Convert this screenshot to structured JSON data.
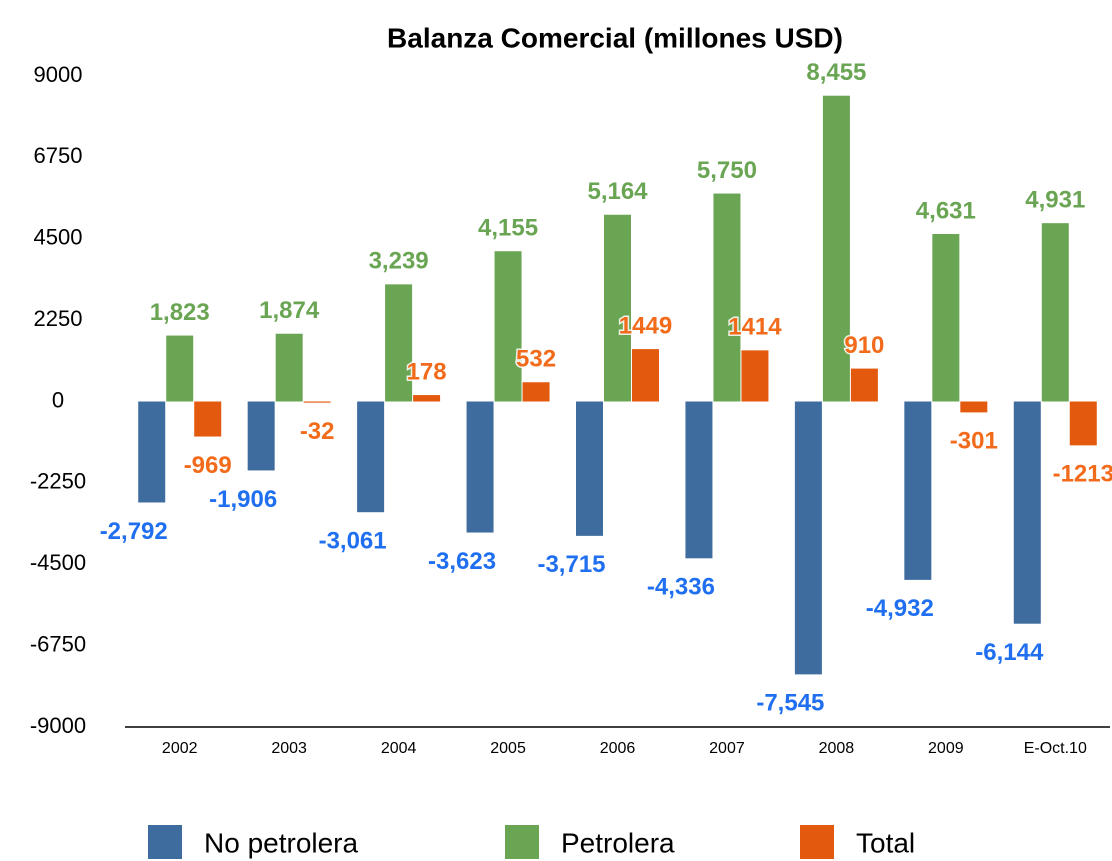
{
  "chart_data": {
    "type": "bar",
    "title": "Balanza Comercial (millones USD)",
    "categories": [
      "2002",
      "2003",
      "2004",
      "2005",
      "2006",
      "2007",
      "2008",
      "2009",
      "E-Oct.10"
    ],
    "series": [
      {
        "name": "No petrolera",
        "color": "#3f6c9e",
        "label_color": "#1f6ff0",
        "values": [
          -2792,
          -1906,
          -3061,
          -3623,
          -3715,
          -4336,
          -7545,
          -4932,
          -6144
        ],
        "value_labels": [
          "-2,792",
          "-1,906",
          "-3,061",
          "-3,623",
          "-3,715",
          "-4,336",
          "-7,545",
          "-4,932",
          "-6,144"
        ]
      },
      {
        "name": "Petrolera",
        "color": "#6aa554",
        "label_color": "#6aa554",
        "values": [
          1823,
          1874,
          3239,
          4155,
          5164,
          5750,
          8455,
          4631,
          4931
        ],
        "value_labels": [
          "1,823",
          "1,874",
          "3,239",
          "4,155",
          "5,164",
          "5,750",
          "8,455",
          "4,631",
          "4,931"
        ]
      },
      {
        "name": "Total",
        "color": "#e35a0e",
        "label_color": "#f26b1b",
        "values": [
          -969,
          -32,
          178,
          532,
          1449,
          1414,
          910,
          -301,
          -1213
        ]
      }
    ],
    "ylim": [
      -9000,
      9000
    ],
    "yticks": [
      -9000,
      -6750,
      -4500,
      -2250,
      0,
      2250,
      4500,
      6750,
      9000
    ],
    "grid": false,
    "legend": "bottom"
  }
}
